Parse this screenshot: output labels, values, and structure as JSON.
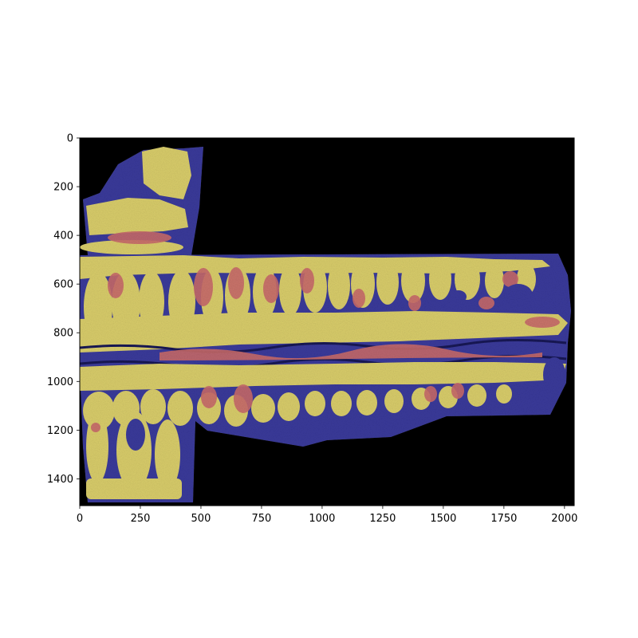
{
  "figure": {
    "background_color": "#ffffff",
    "image_background": "#000000",
    "segmentation_colors": {
      "tissue": "#d8cc6a",
      "boundary": "#3a3a9a",
      "hotspot": "#c86a6a"
    }
  },
  "axes": {
    "xlim": [
      0,
      2040
    ],
    "ylim": [
      1510,
      0
    ],
    "x_ticks": [
      {
        "value": 0,
        "label": "0"
      },
      {
        "value": 250,
        "label": "250"
      },
      {
        "value": 500,
        "label": "500"
      },
      {
        "value": 750,
        "label": "750"
      },
      {
        "value": 1000,
        "label": "1000"
      },
      {
        "value": 1250,
        "label": "1250"
      },
      {
        "value": 1500,
        "label": "1500"
      },
      {
        "value": 1750,
        "label": "1750"
      },
      {
        "value": 2000,
        "label": "2000"
      }
    ],
    "y_ticks": [
      {
        "value": 0,
        "label": "0"
      },
      {
        "value": 200,
        "label": "200"
      },
      {
        "value": 400,
        "label": "400"
      },
      {
        "value": 600,
        "label": "600"
      },
      {
        "value": 800,
        "label": "800"
      },
      {
        "value": 1000,
        "label": "1000"
      },
      {
        "value": 1200,
        "label": "1200"
      },
      {
        "value": 1400,
        "label": "1400"
      }
    ]
  }
}
